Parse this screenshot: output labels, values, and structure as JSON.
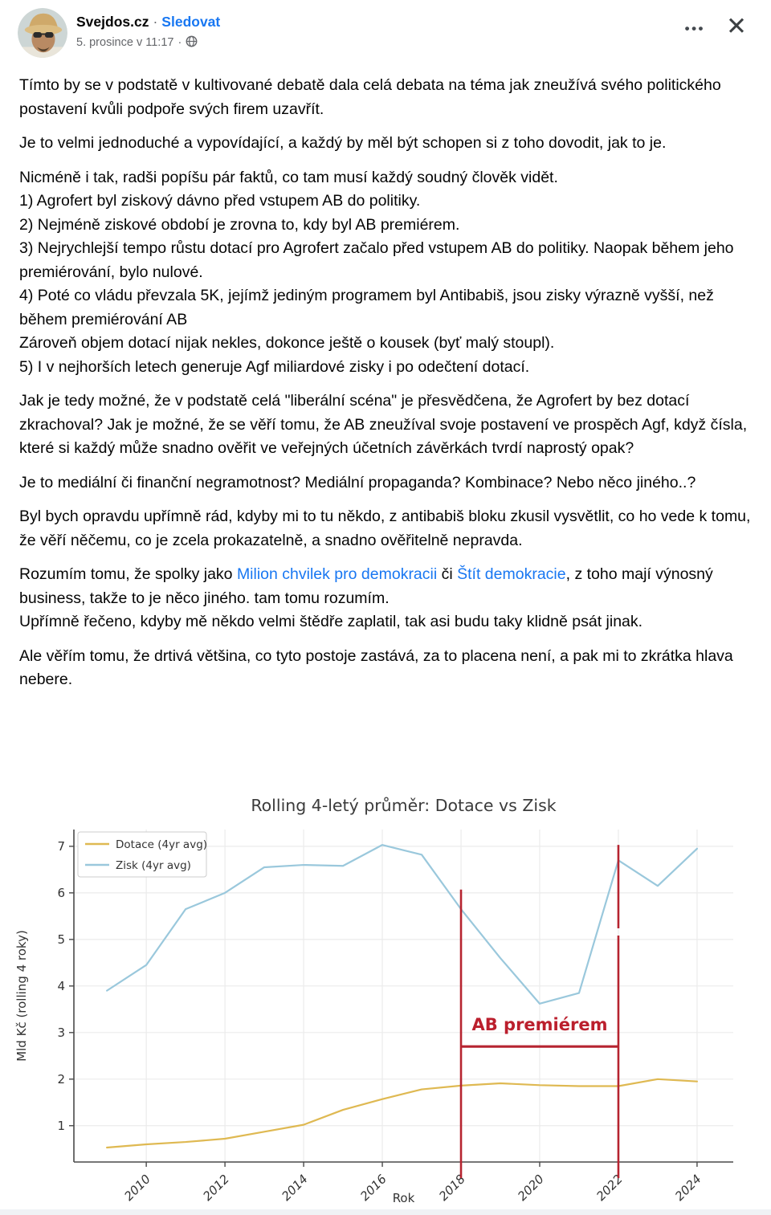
{
  "header": {
    "name": "Svejdos.cz",
    "separator": "·",
    "follow_label": "Sledovat",
    "timestamp": "5. prosince v 11:17",
    "meta_separator": "·",
    "more_label": "•••",
    "close_label": "✕"
  },
  "colors": {
    "link_blue": "#1877f2",
    "annotation_red": "#b62430",
    "dotace_line": "#dfb952",
    "zisk_line": "#9ac8dc",
    "meta_gray": "#65676b"
  },
  "post": {
    "paragraphs": [
      [
        [
          {
            "t": "Tímto by se v podstatě v kultivované debatě dala celá debata na téma jak zneužívá svého politického postavení kvůli podpoře svých firem uzavřít."
          }
        ]
      ],
      [
        [
          {
            "t": "Je to velmi jednoduché a vypovídající, a každý by měl být schopen si z toho dovodit, jak to je."
          }
        ]
      ],
      [
        [
          {
            "t": "Nicméně i tak, radši popíšu pár faktů, co tam musí každý soudný člověk vidět."
          }
        ],
        [
          {
            "t": "1) Agrofert byl ziskový dávno před vstupem AB do politiky."
          }
        ],
        [
          {
            "t": "2) Nejméně ziskové období je zrovna to, kdy byl AB premiérem."
          }
        ],
        [
          {
            "t": "3) Nejrychlejší tempo růstu dotací pro Agrofert začalo před vstupem AB do politiky. Naopak během jeho premiérování, bylo nulové."
          }
        ],
        [
          {
            "t": "4) Poté co vládu převzala 5K, jejímž jediným programem byl Antibabiš, jsou zisky výrazně vyšší, než během premiérování AB"
          }
        ],
        [
          {
            "t": "Zároveň objem dotací nijak nekles, dokonce ještě o kousek (byť malý stoupl)."
          }
        ],
        [
          {
            "t": "5) I v nejhorších letech generuje Agf miliardové zisky i po odečtení dotací."
          }
        ]
      ],
      [
        [
          {
            "t": "Jak je tedy možné, že v podstatě celá \"liberální scéna\" je přesvědčena, že Agrofert by bez dotací zkrachoval? Jak je možné, že se věří tomu, že AB zneužíval svoje postavení ve prospěch Agf, když čísla, které si každý může snadno ověřit ve veřejných účetních závěrkách tvrdí naprostý opak?"
          }
        ]
      ],
      [
        [
          {
            "t": "Je to mediální či finanční negramotnost? Mediální propaganda? Kombinace? Nebo něco jiného..?"
          }
        ]
      ],
      [
        [
          {
            "t": "Byl bych opravdu upřímně rád, kdyby mi to tu někdo, z antibabiš bloku zkusil vysvětlit, co ho vede k tomu, že věří něčemu, co je zcela prokazatelně, a snadno ověřitelně nepravda."
          }
        ]
      ],
      [
        [
          {
            "t": "Rozumím tomu, že spolky jako "
          },
          {
            "t": "Milion chvilek pro demokracii",
            "link": true
          },
          {
            "t": " či "
          },
          {
            "t": "Štít demokracie",
            "link": true
          },
          {
            "t": ", z toho mají výnosný business, takže to je něco jiného. tam tomu rozumím."
          }
        ],
        [
          {
            "t": "Upřímně řečeno, kdyby mě někdo velmi štědře zaplatil, tak asi budu taky klidně psát jinak."
          }
        ]
      ],
      [
        [
          {
            "t": "Ale věřím tomu, že drtivá většina, co tyto postoje zastává, za to placena není, a pak mi to zkrátka hlava nebere."
          }
        ]
      ]
    ]
  },
  "chart_data": {
    "type": "line",
    "title": "Rolling 4-letý průměr: Dotace vs Zisk",
    "xlabel": "Rok",
    "ylabel": "Mld Kč (rolling 4 roky)",
    "x": [
      2009,
      2010,
      2011,
      2012,
      2013,
      2014,
      2015,
      2016,
      2017,
      2018,
      2019,
      2020,
      2021,
      2022,
      2023,
      2024
    ],
    "series": [
      {
        "name": "Dotace (4yr avg)",
        "color": "#dfb952",
        "values": [
          0.53,
          0.6,
          0.65,
          0.72,
          0.87,
          1.02,
          1.34,
          1.57,
          1.78,
          1.86,
          1.91,
          1.87,
          1.85,
          1.85,
          2.0,
          1.95
        ]
      },
      {
        "name": "Zisk (4yr avg)",
        "color": "#9ac8dc",
        "values": [
          3.9,
          4.45,
          5.65,
          6.0,
          6.55,
          6.6,
          6.58,
          7.03,
          6.82,
          5.65,
          4.6,
          3.62,
          3.85,
          6.7,
          6.15,
          6.95
        ]
      }
    ],
    "xticks": [
      2010,
      2012,
      2014,
      2016,
      2018,
      2020,
      2022,
      2024
    ],
    "yticks": [
      1,
      2,
      3,
      4,
      5,
      6,
      7
    ],
    "xlim": [
      2008.16,
      2024.92
    ],
    "ylim": [
      0.22,
      7.36
    ],
    "grid": true,
    "legend_position": "upper left",
    "annotation": {
      "label": "AB premiérem",
      "color": "#b62430",
      "x_start": 2018,
      "x_end": 2022,
      "bracket_y": 2.7,
      "line_start_top": 6.07,
      "line_end_top": 7.03
    }
  }
}
